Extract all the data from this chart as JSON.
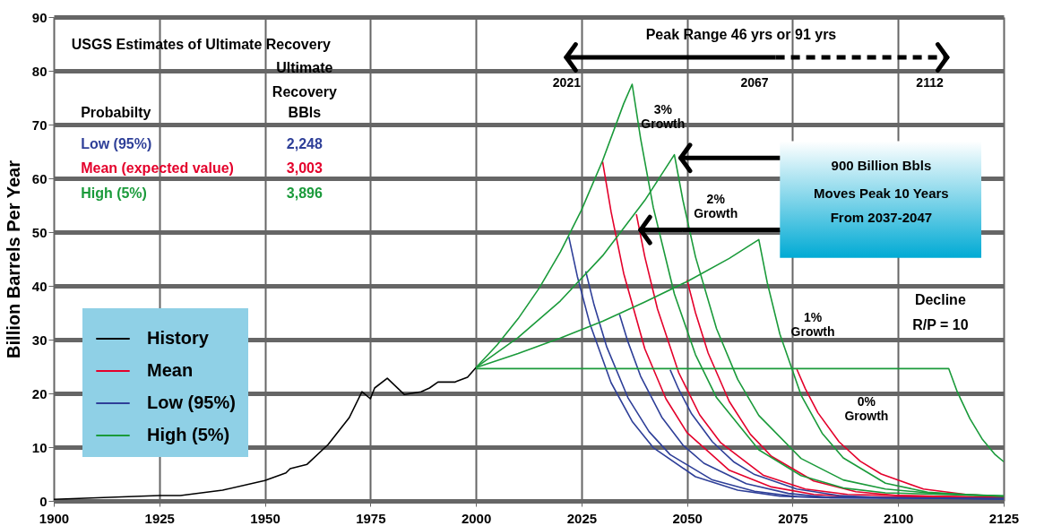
{
  "chart_data": {
    "type": "line",
    "ylabel": "Billion Barrels Per Year",
    "xlim": [
      1900,
      2125
    ],
    "xticks": [
      1900,
      1925,
      1950,
      1975,
      2000,
      2025,
      2050,
      2075,
      2100,
      2125
    ],
    "ylim": [
      0,
      90
    ],
    "yticks": [
      0,
      10,
      20,
      30,
      40,
      50,
      60,
      70,
      80,
      90
    ],
    "grid": true,
    "legend": "bottom left",
    "line_style": "solid",
    "series": [
      {
        "name": "History",
        "color": "#000000",
        "x": [
          1900,
          1925,
          1930,
          1940,
          1950,
          1955,
          1956,
          1960,
          1965,
          1970,
          1973,
          1975,
          1976,
          1979,
          1983,
          1987,
          1989,
          1991,
          1995,
          1998,
          2000
        ],
        "values": [
          0.3,
          1.0,
          1.0,
          2.0,
          3.8,
          5.2,
          6.0,
          6.8,
          10.5,
          15.5,
          20.3,
          19.0,
          21.0,
          22.8,
          19.8,
          20.3,
          21.0,
          22.1,
          22.1,
          23.0,
          24.8
        ]
      },
      {
        "name": "Mean",
        "color": "#e4002b",
        "x": [
          2030,
          2032,
          2035,
          2040,
          2045,
          2050,
          2060,
          2070,
          2080,
          2090,
          2125
        ],
        "values": [
          63.1,
          53.8,
          42.3,
          28.3,
          19.0,
          12.7,
          5.7,
          2.6,
          1.2,
          0.8,
          0.6
        ]
      },
      {
        "color": "#e4002b",
        "x": [
          2038,
          2040,
          2043,
          2048,
          2053,
          2058,
          2068,
          2078,
          2088,
          2125
        ],
        "values": [
          53.3,
          45.4,
          35.7,
          23.9,
          16.0,
          10.8,
          4.8,
          2.2,
          1.2,
          0.6
        ]
      },
      {
        "color": "#e4002b",
        "x": [
          2050,
          2052,
          2055,
          2060,
          2065,
          2070,
          2080,
          2090,
          2100,
          2125
        ],
        "values": [
          41.1,
          35.0,
          27.5,
          18.5,
          12.4,
          8.3,
          3.7,
          1.7,
          1.0,
          0.6
        ]
      },
      {
        "color": "#e4002b",
        "x": [
          2076,
          2078,
          2081,
          2086,
          2091,
          2096,
          2106,
          2116,
          2125
        ],
        "values": [
          24.5,
          20.9,
          16.4,
          11.0,
          7.4,
          5.0,
          2.2,
          1.2,
          0.8
        ]
      },
      {
        "name": "Low (95%)",
        "color": "#2e3f98",
        "x": [
          2022,
          2024,
          2027,
          2032,
          2037,
          2042,
          2052,
          2062,
          2072,
          2082,
          2125
        ],
        "values": [
          49.1,
          41.8,
          32.9,
          22.0,
          14.8,
          9.9,
          4.5,
          2.0,
          0.9,
          0.6,
          0.4
        ]
      },
      {
        "color": "#2e3f98",
        "x": [
          2026,
          2028,
          2031,
          2036,
          2041,
          2046,
          2056,
          2066,
          2076,
          2125
        ],
        "values": [
          42.7,
          36.4,
          28.6,
          19.2,
          12.9,
          8.6,
          3.9,
          1.8,
          0.8,
          0.4
        ]
      },
      {
        "color": "#2e3f98",
        "x": [
          2034,
          2036,
          2039,
          2044,
          2049,
          2054,
          2064,
          2074,
          2084,
          2125
        ],
        "values": [
          34.7,
          29.6,
          23.2,
          15.6,
          10.4,
          7.0,
          3.2,
          1.4,
          0.6,
          0.4
        ]
      },
      {
        "color": "#2e3f98",
        "x": [
          2046,
          2048,
          2051,
          2056,
          2061,
          2066,
          2076,
          2086,
          2096,
          2125
        ],
        "values": [
          24.4,
          20.8,
          16.3,
          11.0,
          7.3,
          4.9,
          2.2,
          1.0,
          0.6,
          0.4
        ]
      },
      {
        "name": "High (5%)",
        "color": "#1a9a3a",
        "x": [
          2000,
          2005,
          2010,
          2015,
          2020,
          2025,
          2030,
          2035,
          2037,
          2039,
          2042,
          2047,
          2052,
          2057,
          2067,
          2077,
          2087,
          2097,
          2125
        ],
        "values": [
          24.8,
          29.0,
          33.9,
          39.6,
          46.3,
          54.1,
          63.3,
          73.9,
          77.5,
          67.4,
          54.6,
          38.5,
          27.2,
          19.2,
          9.5,
          4.7,
          2.4,
          1.5,
          0.9
        ]
      },
      {
        "color": "#1a9a3a",
        "x": [
          2000,
          2010,
          2020,
          2030,
          2040,
          2047,
          2049,
          2052,
          2057,
          2062,
          2067,
          2077,
          2087,
          2097,
          2107,
          2125
        ],
        "values": [
          24.8,
          30.4,
          37.2,
          45.6,
          55.9,
          64.4,
          56.0,
          45.4,
          32.0,
          22.6,
          15.9,
          7.9,
          3.9,
          2.2,
          1.5,
          0.9
        ]
      },
      {
        "color": "#1a9a3a",
        "x": [
          2000,
          2010,
          2020,
          2030,
          2040,
          2050,
          2060,
          2067,
          2069,
          2072,
          2077,
          2082,
          2087,
          2097,
          2107,
          2117,
          2125
        ],
        "values": [
          24.8,
          27.4,
          30.3,
          33.4,
          37.0,
          40.8,
          45.1,
          48.6,
          40.6,
          31.0,
          19.7,
          12.6,
          8.0,
          3.3,
          1.6,
          1.1,
          0.9
        ]
      },
      {
        "color": "#1a9a3a",
        "x": [
          2000,
          2112,
          2114,
          2117,
          2120,
          2123,
          2125
        ],
        "values": [
          24.6,
          24.6,
          20.3,
          15.3,
          11.4,
          8.6,
          7.3
        ]
      }
    ],
    "annotations": [
      "USGS Estimates of Ultimate Recovery",
      "Ultimate",
      "Recovery",
      "BBls",
      "Probabilty",
      "Low (95%)",
      "2,248",
      "Mean (expected value)",
      "3,003",
      "High (5%)",
      "3,896",
      "Peak Range 46 yrs or 91 yrs",
      "900 Billion Bbls",
      "Moves Peak 10 Years",
      "From 2037-2047",
      "Decline",
      "R/P = 10",
      "2021",
      "2067",
      "2112",
      "3%\nGrowth",
      "2%\nGrowth",
      "1%\nGrowth",
      "0%\nGrowth"
    ]
  }
}
